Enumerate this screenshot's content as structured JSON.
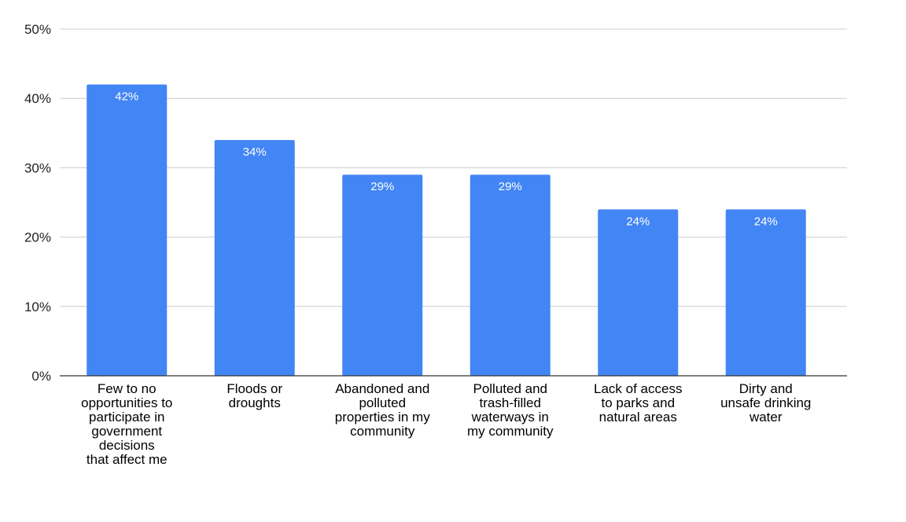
{
  "chart_data": {
    "type": "bar",
    "categories": [
      [
        "Few to no",
        "opportunities to",
        "participate in",
        "government",
        "decisions",
        "that affect me"
      ],
      [
        "Floods or",
        "droughts"
      ],
      [
        "Abandoned and",
        "polluted",
        "properties in my",
        "community"
      ],
      [
        "Polluted and",
        "trash-filled",
        "waterways in",
        "my community"
      ],
      [
        "Lack of access",
        "to parks and",
        "natural areas"
      ],
      [
        "Dirty and",
        "unsafe drinking",
        "water"
      ]
    ],
    "values": [
      42,
      34,
      29,
      29,
      24,
      24
    ],
    "data_labels": [
      "42%",
      "34%",
      "29%",
      "29%",
      "24%",
      "24%"
    ],
    "title": "",
    "xlabel": "",
    "ylabel": "",
    "ylim": [
      0,
      50
    ],
    "yticks": [
      0,
      10,
      20,
      30,
      40,
      50
    ],
    "ytick_labels": [
      "0%",
      "10%",
      "20%",
      "30%",
      "40%",
      "50%"
    ],
    "bar_color": "#4285f4",
    "grid": true,
    "legend": "none"
  }
}
